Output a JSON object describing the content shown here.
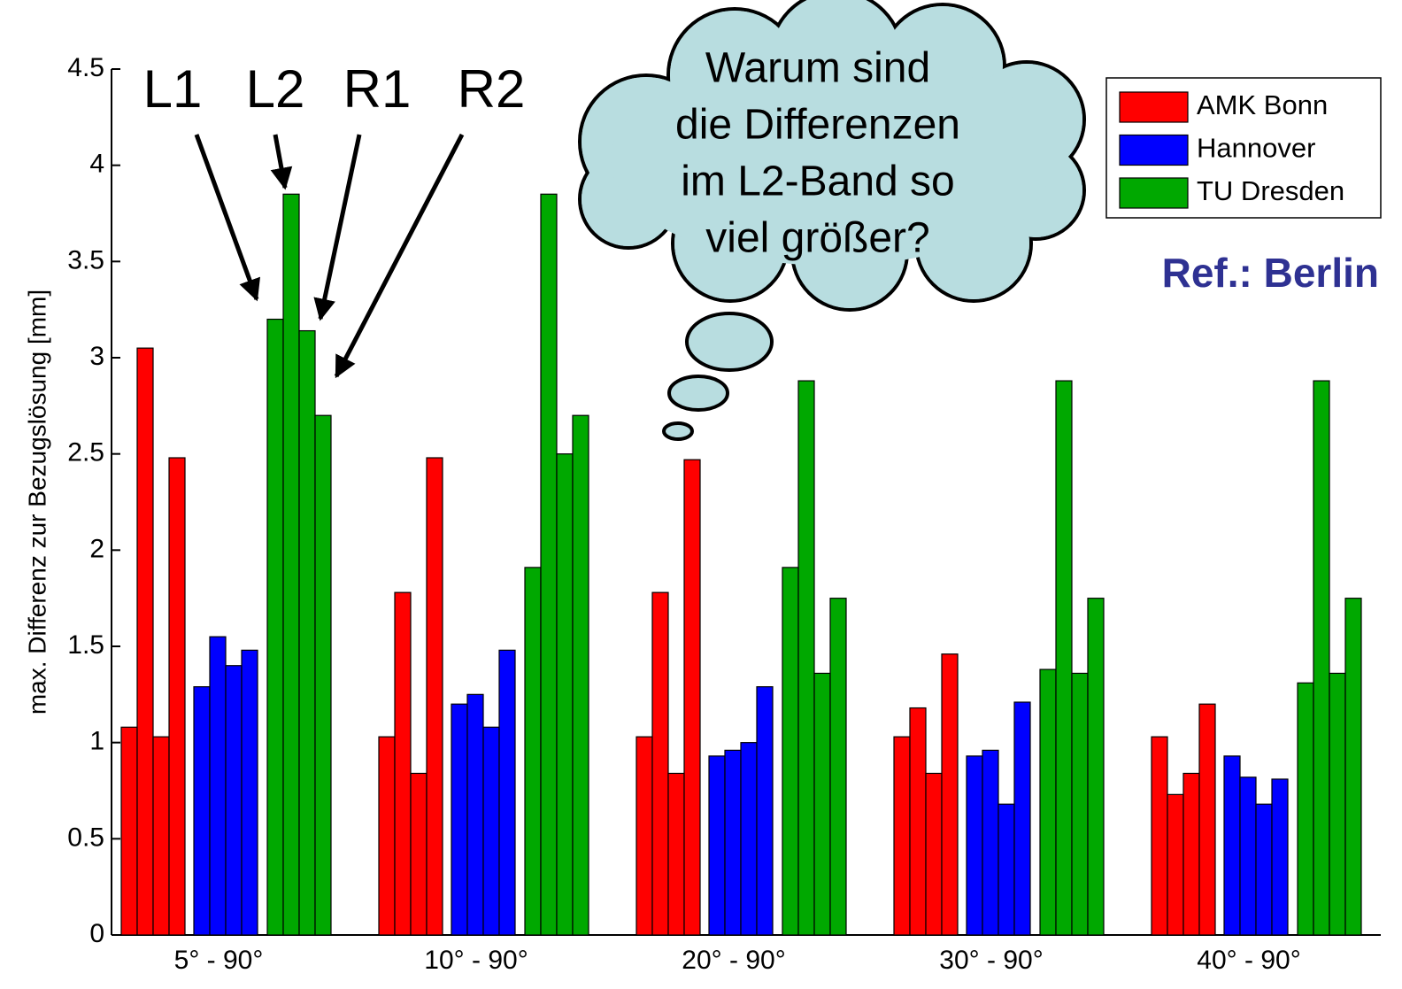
{
  "chart_data": {
    "type": "grouped-bar",
    "y_label": "max. Differenz zur Bezugslösung [mm]",
    "categories": [
      "5° - 90°",
      "10° - 90°",
      "20° - 90°",
      "30° - 90°",
      "40° - 90°"
    ],
    "bar_labels": [
      "L1",
      "L2",
      "R1",
      "R2"
    ],
    "series": [
      {
        "name": "AMK Bonn",
        "color": "#ff0000",
        "values": [
          [
            1.08,
            3.05,
            1.03,
            2.48
          ],
          [
            1.03,
            1.78,
            0.84,
            2.48
          ],
          [
            1.03,
            1.78,
            0.84,
            2.47
          ],
          [
            1.03,
            1.18,
            0.84,
            1.46
          ],
          [
            1.03,
            0.73,
            0.84,
            1.2
          ]
        ]
      },
      {
        "name": "Hannover",
        "color": "#0000ff",
        "values": [
          [
            1.29,
            1.55,
            1.4,
            1.48
          ],
          [
            1.2,
            1.25,
            1.08,
            1.48
          ],
          [
            0.93,
            0.96,
            1.0,
            1.29
          ],
          [
            0.93,
            0.96,
            0.68,
            1.21
          ],
          [
            0.93,
            0.82,
            0.68,
            0.81
          ]
        ]
      },
      {
        "name": "TU Dresden",
        "color": "#00a800",
        "values": [
          [
            3.2,
            3.85,
            3.14,
            2.7
          ],
          [
            1.91,
            3.85,
            2.5,
            2.7
          ],
          [
            1.91,
            2.88,
            1.36,
            1.75
          ],
          [
            1.38,
            2.88,
            1.36,
            1.75
          ],
          [
            1.31,
            2.88,
            1.36,
            1.75
          ]
        ]
      }
    ],
    "ylim": [
      0,
      4.5
    ],
    "yticks": [
      0,
      0.5,
      1,
      1.5,
      2,
      2.5,
      3,
      3.5,
      4,
      4.5
    ],
    "thought_bubble": [
      "Warum sind",
      "die Differenzen",
      "im L2-Band so",
      "viel größer?"
    ],
    "reference": "Ref.: Berlin"
  }
}
